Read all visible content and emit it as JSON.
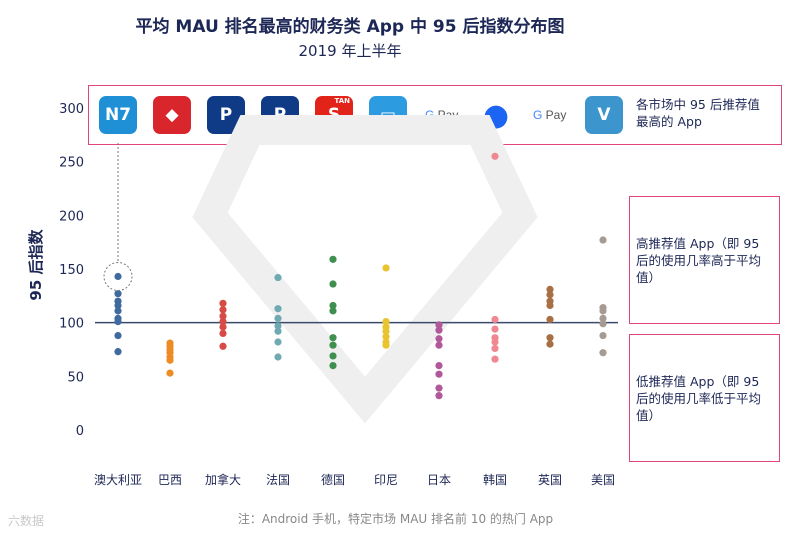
{
  "title": "平均 MAU 排名最高的财务类 App 中 95 后指数分布图",
  "subtitle": "2019 年上半年",
  "ylabel": "95 后指数",
  "footnote": "注：Android 手机，特定市场 MAU 排名前 10 的热门 App",
  "watermark": "六数据",
  "legend": {
    "top_app": "各市场中 95 后推荐值最高的 App",
    "high": "高推荐值 App（即 95 后的使用几率高于平均值）",
    "low": "低推荐值 App（即 95 后的使用几率低于平均值）"
  },
  "icons": [
    {
      "name": "au-app-icon",
      "color": "#1f8fd6",
      "glyph": "N7"
    },
    {
      "name": "br-app-icon",
      "color": "#d9252c",
      "glyph": "◆"
    },
    {
      "name": "paypal-icon-ca",
      "color": "#0f3a86",
      "glyph": "P"
    },
    {
      "name": "paypal-icon-fr",
      "color": "#0f3a86",
      "glyph": "P"
    },
    {
      "name": "de-sparkasse-icon",
      "color": "#e2231a",
      "glyph": "S",
      "badge": "TAN"
    },
    {
      "name": "in-app-icon",
      "color": "#2d9be0",
      "glyph": "▭"
    },
    {
      "name": "gpay-icon-jp",
      "glyph": "G Pay"
    },
    {
      "name": "kr-toss-icon",
      "color": "#1c64f2",
      "glyph": "●"
    },
    {
      "name": "gpay-icon-uk",
      "glyph": "G Pay"
    },
    {
      "name": "venmo-icon",
      "color": "#3d95ce",
      "glyph": "V"
    }
  ],
  "chart_data": {
    "type": "scatter",
    "title": "平均 MAU 排名最高的财务类 App 中 95 后指数分布图",
    "subtitle": "2019 年上半年",
    "ylabel": "95 后指数",
    "ylim": [
      0,
      300
    ],
    "yticks": [
      0,
      50,
      100,
      150,
      200,
      250,
      300
    ],
    "reference_line": 100,
    "categories": [
      "澳大利亚",
      "巴西",
      "加拿大",
      "法国",
      "德国",
      "印尼",
      "日本",
      "韩国",
      "英国",
      "美国"
    ],
    "series": [
      {
        "category": "澳大利亚",
        "color": "#3e6a9e",
        "values": [
          143,
          127,
          120,
          116,
          111,
          104,
          101,
          88,
          73
        ],
        "highlight": 143
      },
      {
        "category": "巴西",
        "color": "#ed8c24",
        "values": [
          81,
          78,
          75,
          72,
          68,
          65,
          53
        ]
      },
      {
        "category": "加拿大",
        "color": "#d64b45",
        "values": [
          118,
          112,
          106,
          101,
          96,
          90,
          78
        ]
      },
      {
        "category": "法国",
        "color": "#6fa9b2",
        "values": [
          142,
          113,
          104,
          97,
          92,
          82,
          68
        ]
      },
      {
        "category": "德国",
        "color": "#3f8f4f",
        "values": [
          159,
          136,
          116,
          111,
          86,
          79,
          69,
          60
        ]
      },
      {
        "category": "印尼",
        "color": "#e9c42f",
        "values": [
          151,
          101,
          96,
          92,
          87,
          82,
          79
        ]
      },
      {
        "category": "日本",
        "color": "#b1589b",
        "values": [
          98,
          93,
          85,
          79,
          60,
          52,
          39,
          32
        ]
      },
      {
        "category": "韩国",
        "color": "#ef8893",
        "values": [
          255,
          103,
          94,
          86,
          82,
          76,
          66
        ]
      },
      {
        "category": "英国",
        "color": "#a86f45",
        "values": [
          131,
          126,
          120,
          116,
          103,
          86,
          80
        ]
      },
      {
        "category": "美国",
        "color": "#a59b94",
        "values": [
          177,
          114,
          111,
          104,
          99,
          88,
          72
        ]
      }
    ]
  }
}
